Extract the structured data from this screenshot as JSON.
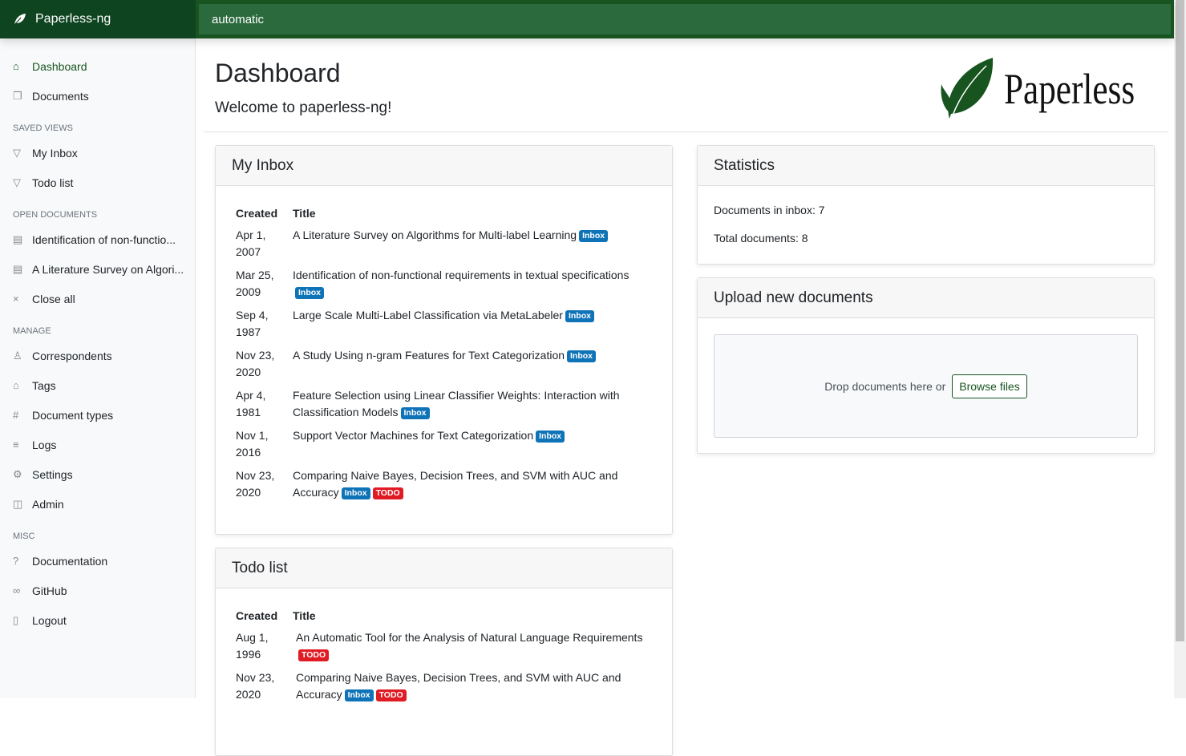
{
  "app": {
    "brand": "Paperless-ng",
    "search_value": "automatic"
  },
  "sidebar": {
    "items": [
      {
        "label": "Dashboard",
        "icon": "house-icon"
      },
      {
        "label": "Documents",
        "icon": "documents-icon"
      }
    ],
    "saved_views_header": "SAVED VIEWS",
    "saved_views": [
      {
        "label": "My Inbox"
      },
      {
        "label": "Todo list"
      }
    ],
    "open_documents_header": "OPEN DOCUMENTS",
    "open_documents": [
      {
        "label": "Identification of non-functio..."
      },
      {
        "label": "A Literature Survey on Algori..."
      }
    ],
    "close_all": "Close all",
    "manage_header": "MANAGE",
    "manage": [
      {
        "label": "Correspondents"
      },
      {
        "label": "Tags"
      },
      {
        "label": "Document types"
      },
      {
        "label": "Logs"
      },
      {
        "label": "Settings"
      },
      {
        "label": "Admin"
      }
    ],
    "misc_header": "MISC",
    "misc": [
      {
        "label": "Documentation"
      },
      {
        "label": "GitHub"
      },
      {
        "label": "Logout"
      }
    ]
  },
  "page": {
    "title": "Dashboard",
    "welcome": "Welcome to paperless-ng!",
    "logo_text": "Paperless"
  },
  "inbox": {
    "title": "My Inbox",
    "col_created": "Created",
    "col_title": "Title",
    "rows": [
      {
        "created": "Apr 1, 2007",
        "title": "A Literature Survey on Algorithms for Multi-label Learning",
        "tags": [
          "Inbox"
        ]
      },
      {
        "created": "Mar 25, 2009",
        "title": "Identification of non-functional requirements in textual specifications",
        "tags": [
          "Inbox"
        ]
      },
      {
        "created": "Sep 4, 1987",
        "title": "Large Scale Multi-Label Classification via MetaLabeler",
        "tags": [
          "Inbox"
        ]
      },
      {
        "created": "Nov 23, 2020",
        "title": "A Study Using n-gram Features for Text Categorization",
        "tags": [
          "Inbox"
        ]
      },
      {
        "created": "Apr 4, 1981",
        "title": "Feature Selection using Linear Classifier Weights: Interaction with Classification Models",
        "tags": [
          "Inbox"
        ]
      },
      {
        "created": "Nov 1, 2016",
        "title": "Support Vector Machines for Text Categorization",
        "tags": [
          "Inbox"
        ]
      },
      {
        "created": "Nov 23, 2020",
        "title": "Comparing Naive Bayes, Decision Trees, and SVM with AUC and Accuracy",
        "tags": [
          "Inbox",
          "TODO"
        ]
      }
    ]
  },
  "todo": {
    "title": "Todo list",
    "col_created": "Created",
    "col_title": "Title",
    "rows": [
      {
        "created": "Aug 1, 1996",
        "title": "An Automatic Tool for the Analysis of Natural Language Requirements",
        "tags": [
          "TODO"
        ]
      },
      {
        "created": "Nov 23, 2020",
        "title": "Comparing Naive Bayes, Decision Trees, and SVM with AUC and Accuracy",
        "tags": [
          "Inbox",
          "TODO"
        ]
      }
    ]
  },
  "statistics": {
    "title": "Statistics",
    "inbox_label": "Documents in inbox: 7",
    "total_label": "Total documents: 8"
  },
  "upload": {
    "title": "Upload new documents",
    "drop_text": "Drop documents here or",
    "browse": "Browse files"
  },
  "colors": {
    "brand": "#17541f",
    "inbox_tag": "#0f73b8",
    "todo_tag": "#e01b24"
  }
}
